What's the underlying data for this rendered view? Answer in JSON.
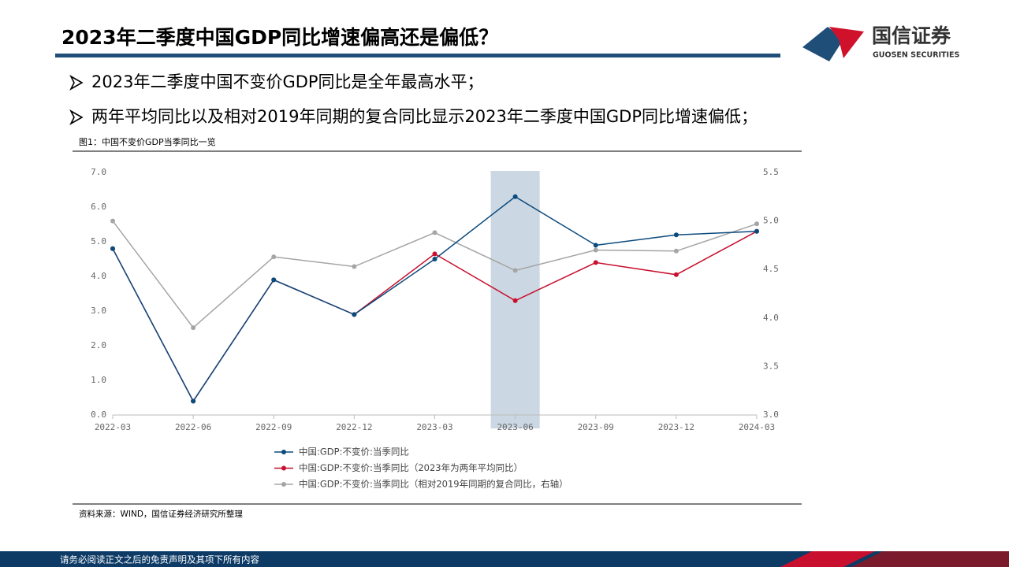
{
  "header": {
    "title": "2023年二季度中国GDP同比增速偏高还是偏低？",
    "logo_name": "国信证券",
    "logo_subtitle": "GUOSEN SECURITIES"
  },
  "bullets": [
    "2023年二季度中国不变价GDP同比是全年最高水平；",
    "两年平均同比以及相对2019年同期的复合同比显示2023年二季度中国GDP同比增速偏低；"
  ],
  "figure_caption": "图1：中国不变价GDP当季同比一览",
  "source": "资料来源：WIND，国信证券经济研究所整理",
  "footer": "请务必阅读正文之后的免责声明及其项下所有内容",
  "chart_data": {
    "type": "line",
    "categories": [
      "2022-03",
      "2022-06",
      "2022-09",
      "2022-12",
      "2023-03",
      "2023-06",
      "2023-09",
      "2023-12",
      "2024-03"
    ],
    "highlight_index": 5,
    "series": [
      {
        "name": "中国:GDP:不变价:当季同比",
        "color": "#0b4a7d",
        "values": [
          4.8,
          0.4,
          3.9,
          2.9,
          4.5,
          6.3,
          4.9,
          5.2,
          5.3
        ]
      },
      {
        "name": "中国:GDP:不变价:当季同比（2023年为两年平均同比）",
        "color": "#c8102e",
        "values": [
          4.8,
          0.4,
          3.9,
          2.9,
          4.65,
          3.3,
          4.4,
          4.05,
          5.3
        ]
      },
      {
        "name": "中国:GDP:不变价:当季同比（相对2019年同期的复合同比，右轴）",
        "color": "#a5a5a5",
        "axis": "y2",
        "values": [
          5.0,
          3.9,
          4.63,
          4.53,
          4.88,
          4.49,
          4.7,
          4.69,
          4.97
        ]
      }
    ],
    "ylim": [
      0,
      7
    ],
    "yticks": [
      {
        "value": 0,
        "label": "0.0"
      },
      {
        "value": 1,
        "label": "1.0"
      },
      {
        "value": 2,
        "label": "2.0"
      },
      {
        "value": 3,
        "label": "3.0"
      },
      {
        "value": 4,
        "label": "4.0"
      },
      {
        "value": 5,
        "label": "5.0"
      },
      {
        "value": 6,
        "label": "6.0"
      },
      {
        "value": 7,
        "label": "7.0"
      }
    ],
    "y2lim": [
      3,
      5.5
    ],
    "y2ticks": [
      {
        "value": 3,
        "label": "3.0"
      },
      3.5,
      {
        "value": 4,
        "label": "4.0"
      },
      4.5,
      {
        "value": 5,
        "label": "5.0"
      },
      5.5
    ],
    "grid": false
  }
}
